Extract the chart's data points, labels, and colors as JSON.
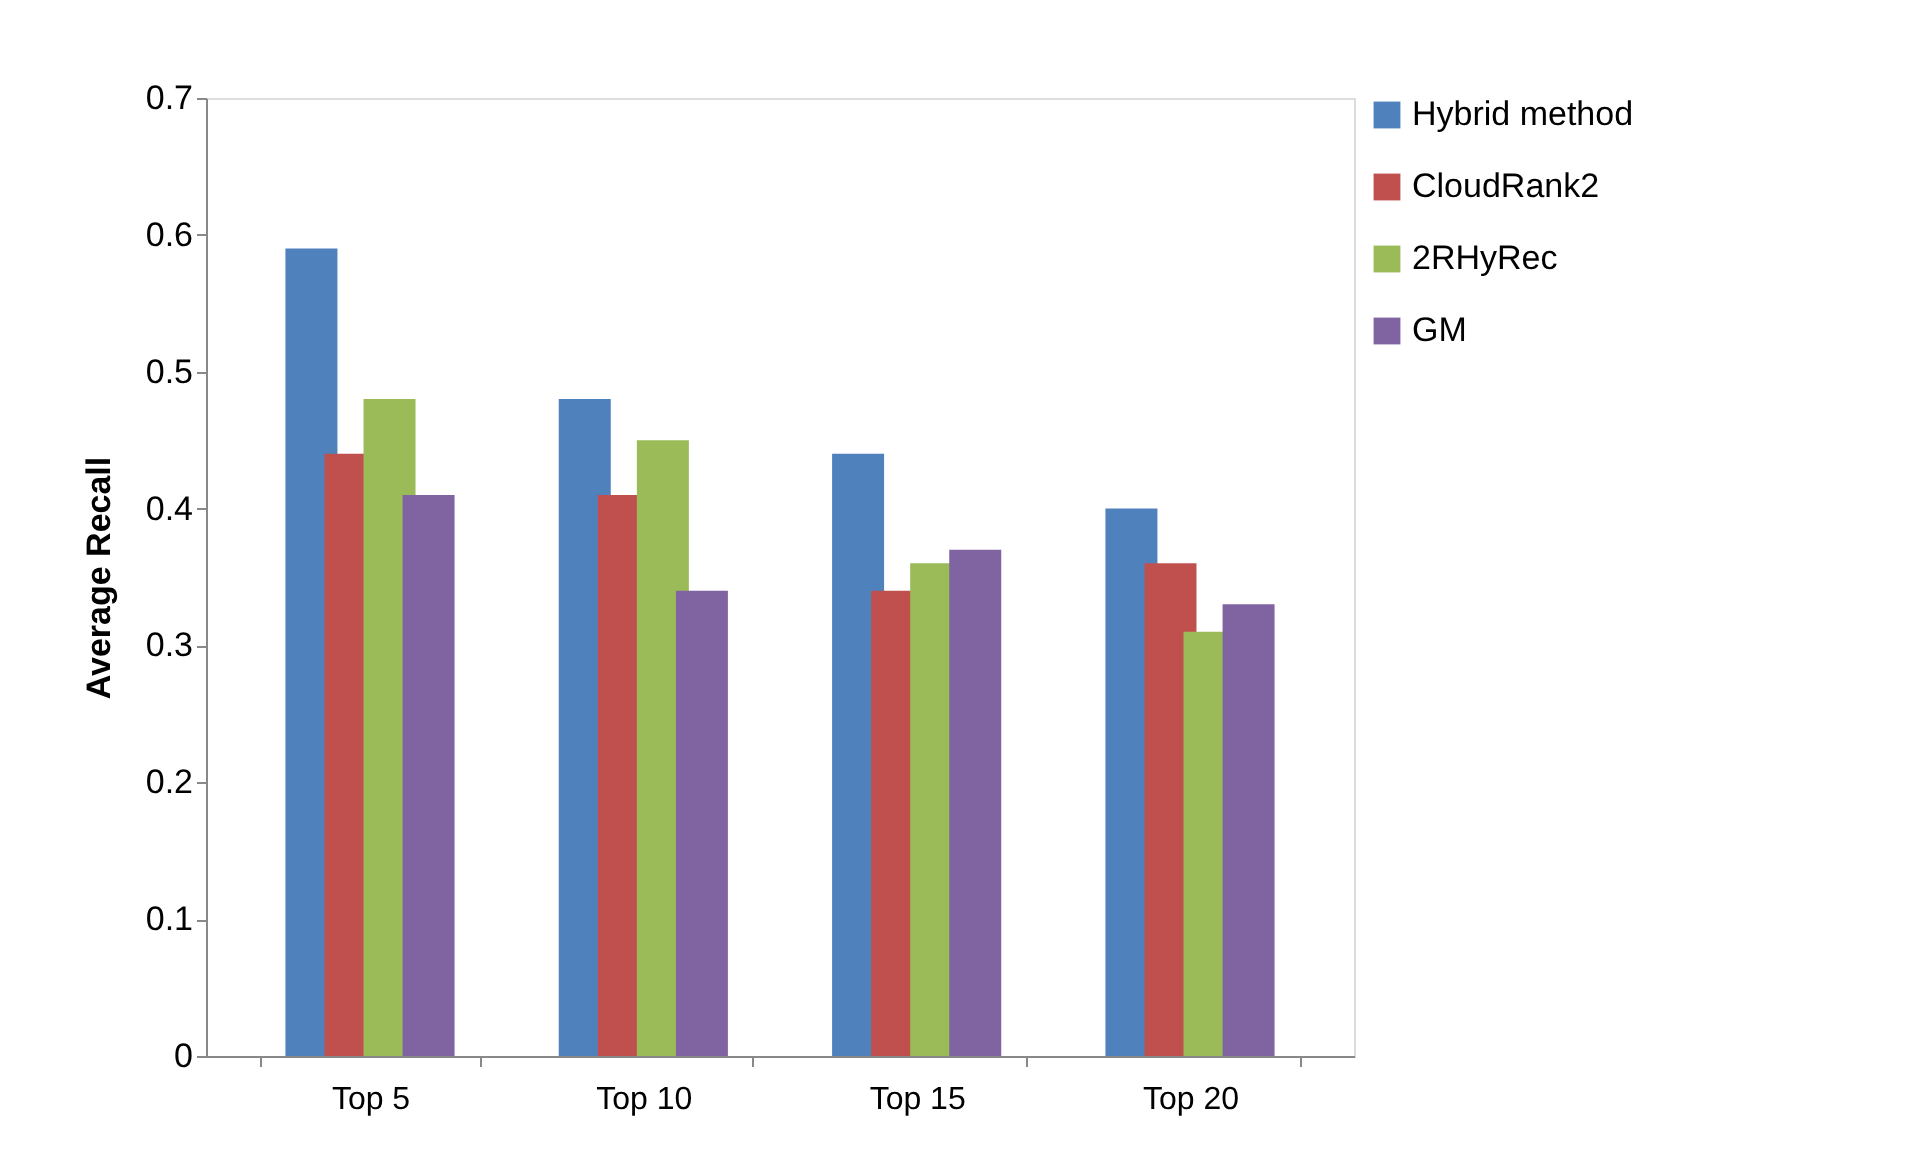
{
  "chart_data": {
    "type": "bar",
    "ylabel": "Average Recall",
    "categories": [
      "Top 5",
      "Top 10",
      "Top 15",
      "Top 20"
    ],
    "series": [
      {
        "name": "Hybrid method",
        "color": "#4f81bd",
        "values": [
          0.59,
          0.48,
          0.44,
          0.4
        ]
      },
      {
        "name": "CloudRank2",
        "color": "#c0504d",
        "values": [
          0.44,
          0.41,
          0.34,
          0.36
        ]
      },
      {
        "name": "2RHyRec",
        "color": "#9bbb59",
        "values": [
          0.48,
          0.45,
          0.36,
          0.31
        ]
      },
      {
        "name": "GM",
        "color": "#8064a2",
        "values": [
          0.41,
          0.34,
          0.37,
          0.33
        ]
      }
    ],
    "ylim": [
      0,
      0.7
    ],
    "yticks": [
      0,
      0.1,
      0.2,
      0.3,
      0.4,
      0.5,
      0.6,
      0.7
    ],
    "grid": false,
    "legend": "top right"
  }
}
